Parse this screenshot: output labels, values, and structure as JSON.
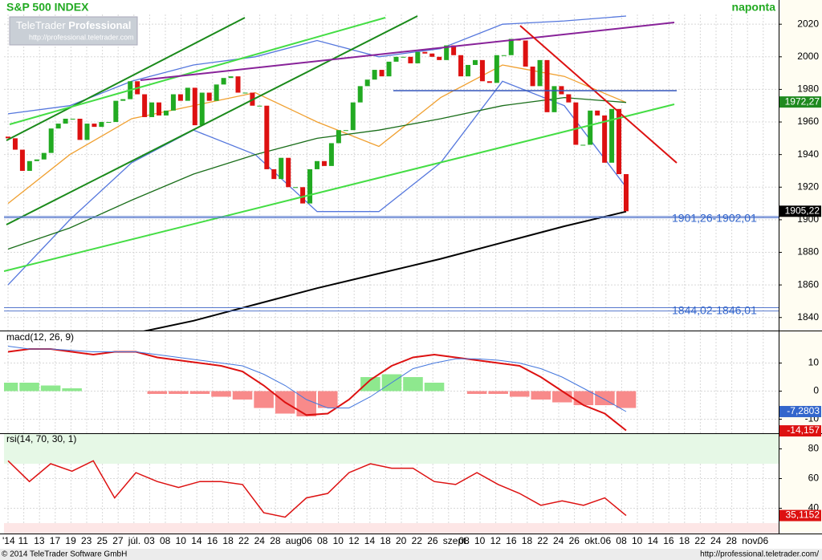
{
  "header": {
    "title": "S&P 500 INDEX",
    "frequency": "naponta",
    "logo": {
      "brand": "TeleTrader",
      "product": "Professional",
      "url": "http://professional.teletrader.com"
    }
  },
  "chart_data": [
    {
      "type": "candlestick",
      "ylim": [
        1832,
        2026
      ],
      "yticks": [
        1840,
        1860,
        1880,
        1900,
        1920,
        1940,
        1960,
        1980,
        2000,
        2020
      ],
      "up_color": "#22aa22",
      "down_color": "#dd1111",
      "open": [
        1951,
        1950,
        1943,
        1930,
        1936,
        1937,
        1941,
        1956,
        1959,
        1962,
        1962,
        1949,
        1959,
        1957,
        1960,
        1960,
        1973,
        1974,
        1985,
        1977,
        1963,
        1972,
        1964,
        1967,
        1977,
        1973,
        1981,
        1958,
        1978,
        1973,
        1983,
        1987,
        1988,
        1978,
        1978,
        1970,
        1970,
        1931,
        1925,
        1938,
        1920,
        1920,
        1910,
        1931,
        1936,
        1933,
        1947,
        1955,
        1955,
        1972,
        1982,
        1986,
        1992,
        1988,
        1997,
        2000,
        2000,
        1996,
        2003,
        2002,
        2000,
        1998,
        2007,
        2001,
        1988,
        1995,
        1998,
        1985,
        1984,
        2001,
        2001,
        2011,
        2010,
        1994,
        1982,
        1998,
        1966,
        1982,
        1977,
        1972,
        1946,
        1946,
        1967,
        1964,
        1935,
        1968,
        1928
      ],
      "close": [
        1950,
        1943,
        1930,
        1936,
        1937,
        1941,
        1956,
        1959,
        1962,
        1962,
        1949,
        1959,
        1957,
        1960,
        1960,
        1973,
        1974,
        1985,
        1977,
        1963,
        1972,
        1964,
        1967,
        1977,
        1973,
        1981,
        1958,
        1978,
        1973,
        1983,
        1987,
        1988,
        1978,
        1978,
        1970,
        1970,
        1931,
        1925,
        1938,
        1920,
        1920,
        1910,
        1931,
        1936,
        1933,
        1947,
        1955,
        1955,
        1972,
        1982,
        1986,
        1992,
        1988,
        1997,
        2000,
        2000,
        1996,
        2003,
        2002,
        2000,
        1998,
        2007,
        2001,
        1988,
        1995,
        1998,
        1985,
        1984,
        2001,
        2001,
        2011,
        2010,
        1994,
        1982,
        1998,
        1966,
        1982,
        1977,
        1972,
        1946,
        1946,
        1967,
        1964,
        1935,
        1968,
        1928,
        1905.22
      ],
      "overlays": [
        {
          "color": "#5577dd",
          "values": [
            1965,
            1970,
            1985,
            1995,
            2000,
            2010,
            2000,
            2005,
            2020,
            2022,
            2025
          ]
        },
        {
          "color": "#5577dd",
          "values": [
            1860,
            1900,
            1935,
            1955,
            1940,
            1905,
            1905,
            1935,
            1985,
            1970,
            1920
          ]
        },
        {
          "color": "#f0a030",
          "values": [
            1910,
            1940,
            1962,
            1970,
            1978,
            1960,
            1945,
            1975,
            1995,
            1988,
            1972
          ]
        },
        {
          "color": "#1a6e1a",
          "values": [
            1882,
            1895,
            1912,
            1928,
            1940,
            1950,
            1955,
            1962,
            1970,
            1975,
            1972
          ]
        },
        {
          "color": "#000000",
          "values": [
            null,
            null,
            1830,
            1838,
            1848,
            1858,
            1867,
            1876,
            1886,
            1896,
            1905
          ]
        }
      ],
      "annotations": [
        {
          "label": "1901,26-1902,01",
          "low": 1901.26,
          "high": 1902.01
        },
        {
          "label": "1844,02-1846,01",
          "low": 1844.02,
          "high": 1846.01
        }
      ],
      "markers": [
        {
          "value": 1972.27,
          "label": "1972,27",
          "color": "#1f8a1f"
        },
        {
          "value": 1905.22,
          "label": "1905,22",
          "color": "#000000"
        }
      ]
    },
    {
      "type": "macd",
      "title": "macd(12, 26, 9)",
      "ylim": [
        -15,
        17
      ],
      "yticks": [
        10,
        0,
        -10
      ],
      "histogram": {
        "pos_color": "#8ee88e",
        "neg_color": "#f88a8a",
        "values": [
          3,
          3,
          2,
          1,
          0,
          0,
          0,
          -1,
          -1,
          -1,
          -2,
          -3,
          -6,
          -8,
          -9,
          -6,
          0,
          5,
          6,
          5,
          3,
          0,
          -1,
          -1,
          -2,
          -3,
          -4,
          -5,
          -5,
          -6
        ]
      },
      "series": [
        {
          "color": "#dd1111",
          "values": [
            14,
            15,
            15,
            14,
            13,
            14,
            14,
            12,
            11,
            10,
            9,
            7,
            2,
            -4,
            -8.5,
            -8,
            -3,
            4,
            9,
            12,
            13,
            12,
            11,
            10,
            9,
            5,
            0,
            -5,
            -8,
            -14
          ]
        },
        {
          "color": "#4477dd",
          "values": [
            16,
            15,
            15,
            14.5,
            14,
            14,
            14,
            13,
            12,
            11,
            10,
            9,
            6,
            2,
            -3,
            -6,
            -6,
            -2,
            3,
            8,
            10,
            11.5,
            11.5,
            11,
            10,
            8,
            5,
            1,
            -3,
            -7.3
          ]
        }
      ],
      "markers": [
        {
          "value": -7.2803,
          "label": "-7,2803",
          "color": "#3366cc"
        },
        {
          "value": -14.157,
          "label": "-14,157",
          "color": "#dd1111"
        }
      ]
    },
    {
      "type": "rsi",
      "title": "rsi(14, 70, 30, 1)",
      "ylim": [
        23,
        90
      ],
      "yticks": [
        80,
        60,
        40
      ],
      "overbought": 70,
      "oversold": 30,
      "series": [
        {
          "color": "#dd1111",
          "values": [
            72,
            58,
            70,
            65,
            72,
            47,
            64,
            58,
            54,
            58,
            58,
            56,
            37,
            34,
            47,
            50,
            64,
            70,
            67,
            67,
            58,
            56,
            64,
            56,
            50,
            42,
            45,
            42,
            47,
            35.1
          ]
        }
      ],
      "markers": [
        {
          "value": 35.1152,
          "label": "35,1152",
          "color": "#dd1111"
        }
      ]
    }
  ],
  "x_labels": [
    "'14",
    "11",
    "13",
    "17",
    "19",
    "23",
    "25",
    "27",
    "júl.",
    "03",
    "08",
    "10",
    "14",
    "16",
    "18",
    "22",
    "24",
    "28",
    "aug.",
    "06",
    "08",
    "10",
    "12",
    "14",
    "18",
    "20",
    "22",
    "26",
    "szept.",
    "08",
    "10",
    "12",
    "16",
    "18",
    "22",
    "24",
    "26",
    "okt.",
    "06",
    "08",
    "10",
    "14",
    "16",
    "18",
    "22",
    "24",
    "28",
    "nov.",
    "06"
  ],
  "footer": {
    "copyright": "© 2014 TeleTrader Software GmbH",
    "url": "http://professional.teletrader.com/"
  }
}
